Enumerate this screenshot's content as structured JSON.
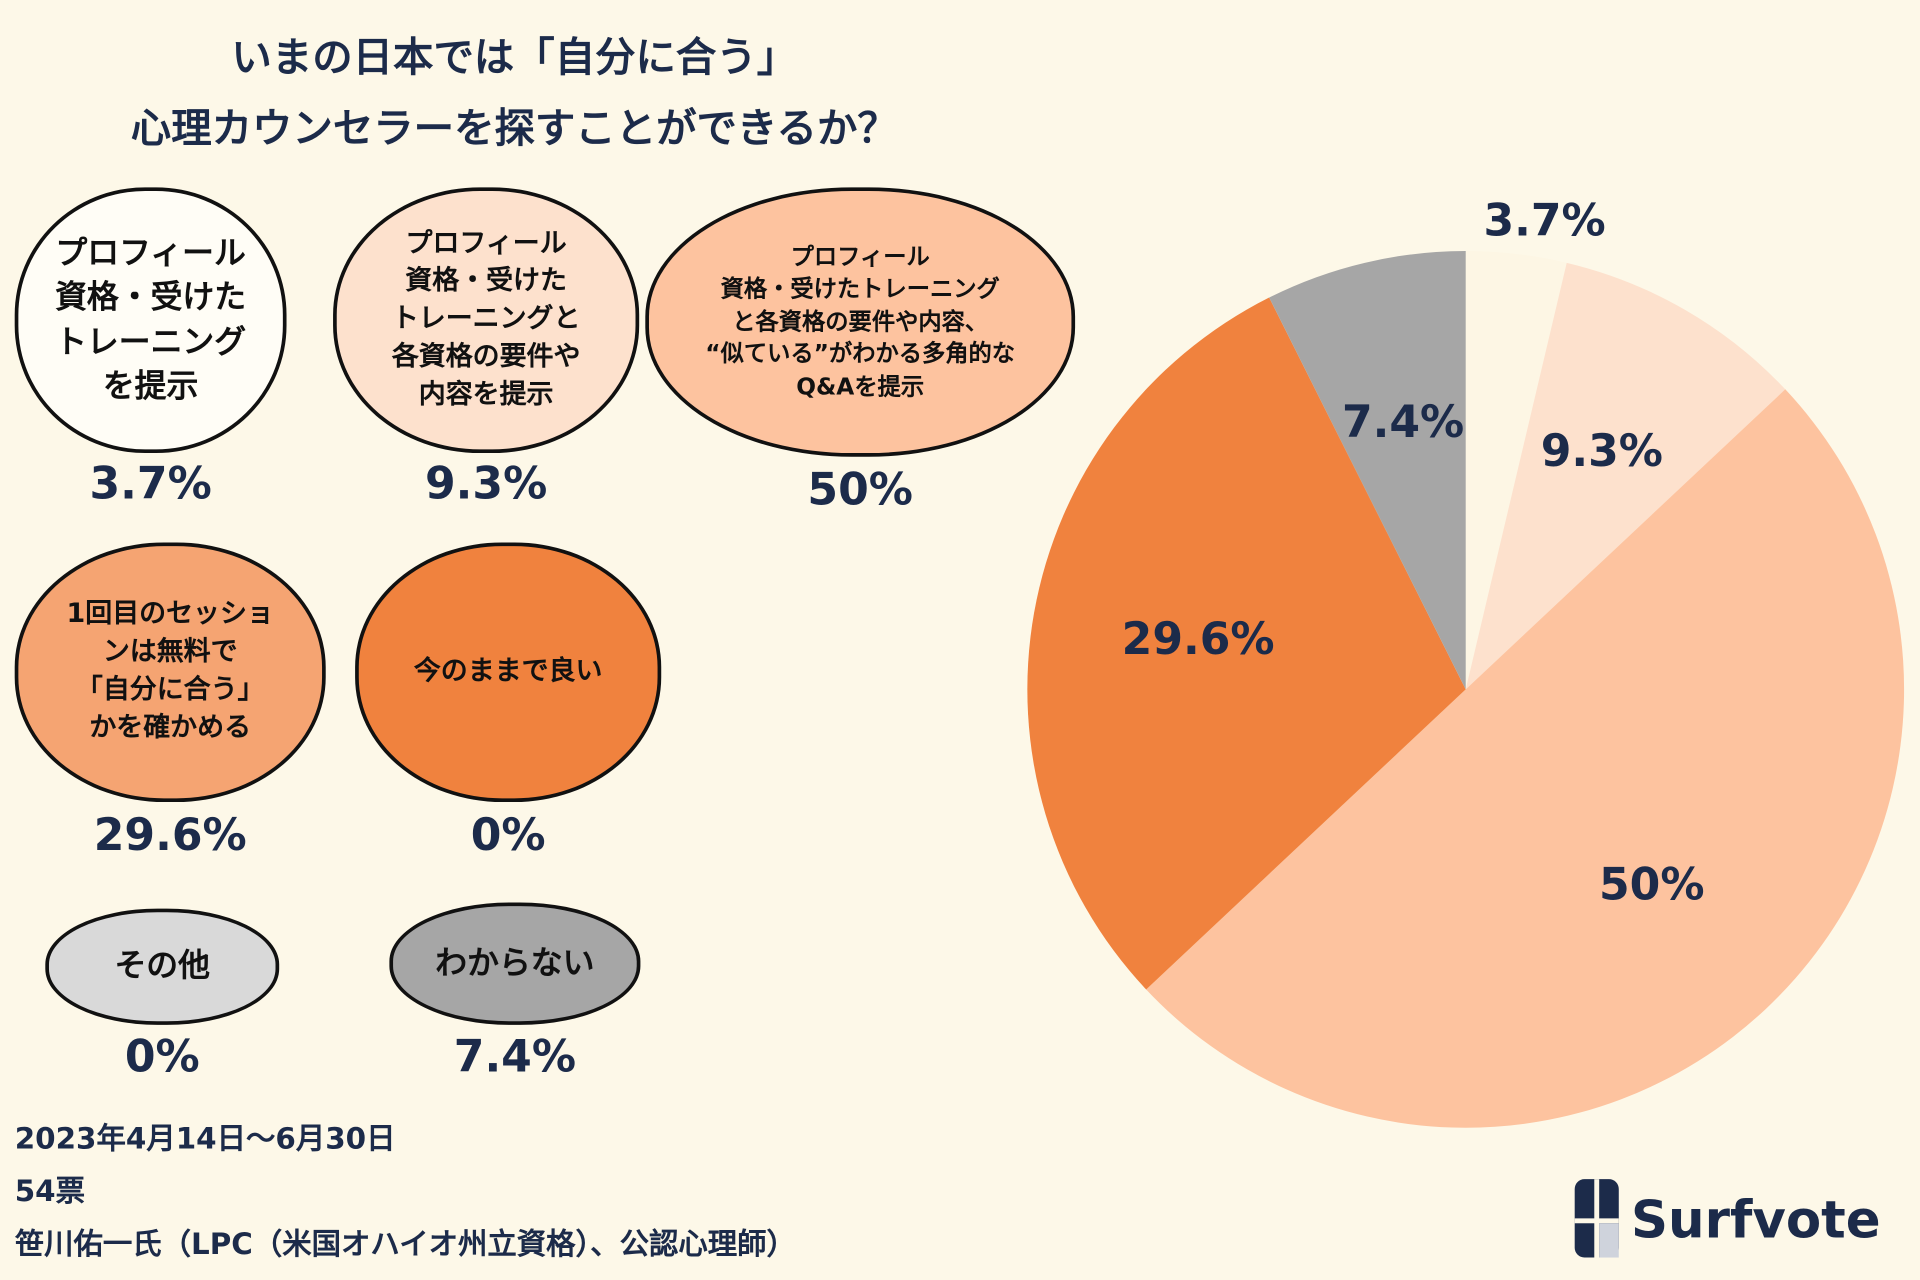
{
  "chart_data": {
    "type": "pie",
    "title": [
      "いまの日本では「自分に合う」",
      "心理カウンセラーを探すことができるか？"
    ],
    "categories": [
      "プロフィール\n資格・受けた\nトレーニング\nを提示",
      "プロフィール\n資格・受けた\nトレーニングと\n各資格の要件や\n内容を提示",
      "プロフィール\n資格・受けたトレーニング\nと各資格の要件や内容、\n“似ている”がわかる多角的な\nQ&Aを提示",
      "1回目のセッショ\nンは無料で\n「自分に合う」\nかを確かめる",
      "今のままで良い",
      "その他",
      "わからない"
    ],
    "values": [
      3.7,
      9.3,
      50,
      29.6,
      0,
      0,
      7.4
    ],
    "value_labels": [
      "3.7%",
      "9.3%",
      "50%",
      "29.6%",
      "0%",
      "0%",
      "7.4%"
    ],
    "colors": [
      "#fdf6e4",
      "#fde1cd",
      "#fdc39f",
      "#f0823e",
      "#f0823e",
      "#d9d9d9",
      "#a6a6a6"
    ],
    "label_box_colors": [
      "#fffdf6",
      "#fde1cd",
      "#fdc39f",
      "#f5a472",
      "#f0823e",
      "#d9d9d9",
      "#a6a6a6"
    ],
    "notes": [
      "2023年4月14日〜6月30日",
      "54票",
      "笹川佑一氏（LPC（米国オハイオ州立資格）、公認心理師）"
    ],
    "logo": "Surfvote"
  }
}
